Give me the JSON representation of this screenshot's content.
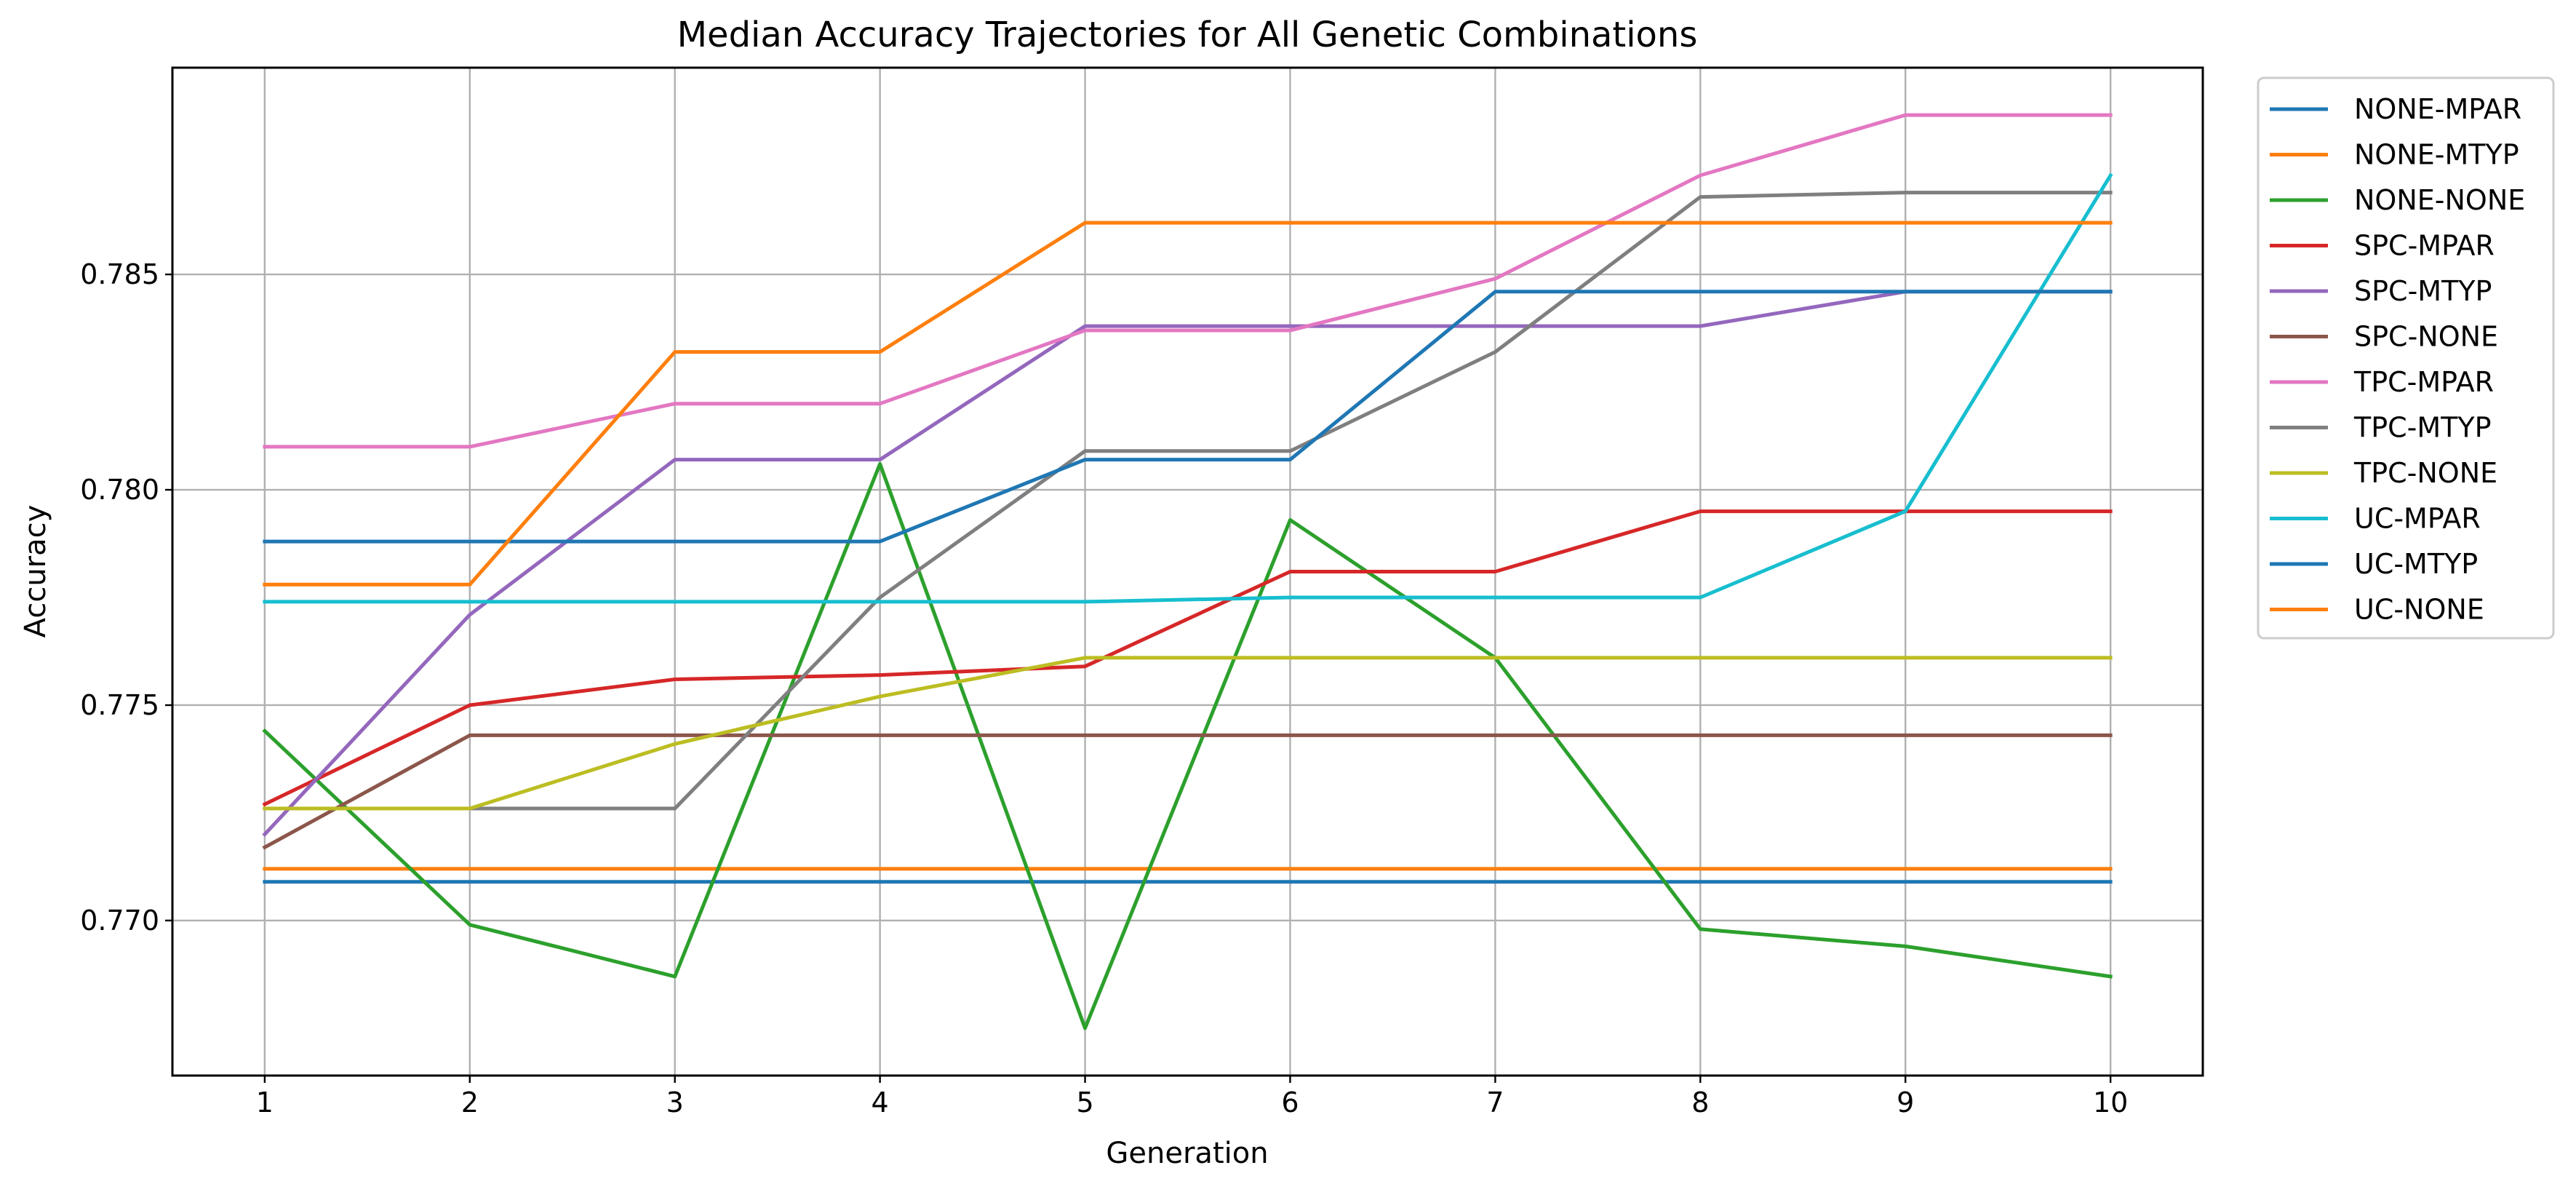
{
  "chart_data": {
    "type": "line",
    "title": "Median Accuracy Trajectories for All Genetic Combinations",
    "xlabel": "Generation",
    "ylabel": "Accuracy",
    "x": [
      1,
      2,
      3,
      4,
      5,
      6,
      7,
      8,
      9,
      10
    ],
    "xticks": [
      "1",
      "2",
      "3",
      "4",
      "5",
      "6",
      "7",
      "8",
      "9",
      "10"
    ],
    "xlim": [
      0.55,
      10.45
    ],
    "yticks": [
      "0.770",
      "0.775",
      "0.780",
      "0.785"
    ],
    "ytick_values": [
      0.77,
      0.775,
      0.78,
      0.785
    ],
    "ylim": [
      0.7664,
      0.7898
    ],
    "grid": true,
    "legend_position": "outside-right-top",
    "series": [
      {
        "name": "NONE-MPAR",
        "color": "#1f77b4",
        "values": [
          0.7709,
          0.7709,
          0.7709,
          0.7709,
          0.7709,
          0.7709,
          0.7709,
          0.7709,
          0.7709,
          0.7709
        ]
      },
      {
        "name": "NONE-MTYP",
        "color": "#ff7f0e",
        "values": [
          0.7712,
          0.7712,
          0.7712,
          0.7712,
          0.7712,
          0.7712,
          0.7712,
          0.7712,
          0.7712,
          0.7712
        ]
      },
      {
        "name": "NONE-NONE",
        "color": "#2ca02c",
        "values": [
          0.7744,
          0.7699,
          0.7687,
          0.7806,
          0.7675,
          0.7793,
          0.7761,
          0.7698,
          0.7694,
          0.7687
        ]
      },
      {
        "name": "SPC-MPAR",
        "color": "#d62728",
        "values": [
          0.7727,
          0.775,
          0.7756,
          0.7757,
          0.7759,
          0.7781,
          0.7781,
          0.7795,
          0.7795,
          0.7795
        ]
      },
      {
        "name": "SPC-MTYP",
        "color": "#9467bd",
        "values": [
          0.772,
          0.7771,
          0.7807,
          0.7807,
          0.7838,
          0.7838,
          0.7838,
          0.7838,
          0.7846,
          0.7846
        ]
      },
      {
        "name": "SPC-NONE",
        "color": "#8c564b",
        "values": [
          0.7717,
          0.7743,
          0.7743,
          0.7743,
          0.7743,
          0.7743,
          0.7743,
          0.7743,
          0.7743,
          0.7743
        ]
      },
      {
        "name": "TPC-MPAR",
        "color": "#e377c2",
        "values": [
          0.781,
          0.781,
          0.782,
          0.782,
          0.7837,
          0.7837,
          0.7849,
          0.7873,
          0.7887,
          0.7887
        ]
      },
      {
        "name": "TPC-MTYP",
        "color": "#7f7f7f",
        "values": [
          0.7726,
          0.7726,
          0.7726,
          0.7775,
          0.7809,
          0.7809,
          0.7832,
          0.7868,
          0.7869,
          0.7869
        ]
      },
      {
        "name": "TPC-NONE",
        "color": "#bcbd22",
        "values": [
          0.7726,
          0.7726,
          0.7741,
          0.7752,
          0.7761,
          0.7761,
          0.7761,
          0.7761,
          0.7761,
          0.7761
        ]
      },
      {
        "name": "UC-MPAR",
        "color": "#17becf",
        "values": [
          0.7774,
          0.7774,
          0.7774,
          0.7774,
          0.7774,
          0.7775,
          0.7775,
          0.7775,
          0.7795,
          0.7873
        ]
      },
      {
        "name": "UC-MTYP",
        "color": "#1f77b4",
        "values": [
          0.7788,
          0.7788,
          0.7788,
          0.7788,
          0.7807,
          0.7807,
          0.7846,
          0.7846,
          0.7846,
          0.7846
        ]
      },
      {
        "name": "UC-NONE",
        "color": "#ff7f0e",
        "values": [
          0.7778,
          0.7778,
          0.7832,
          0.7832,
          0.7862,
          0.7862,
          0.7862,
          0.7862,
          0.7862,
          0.7862
        ]
      }
    ]
  }
}
